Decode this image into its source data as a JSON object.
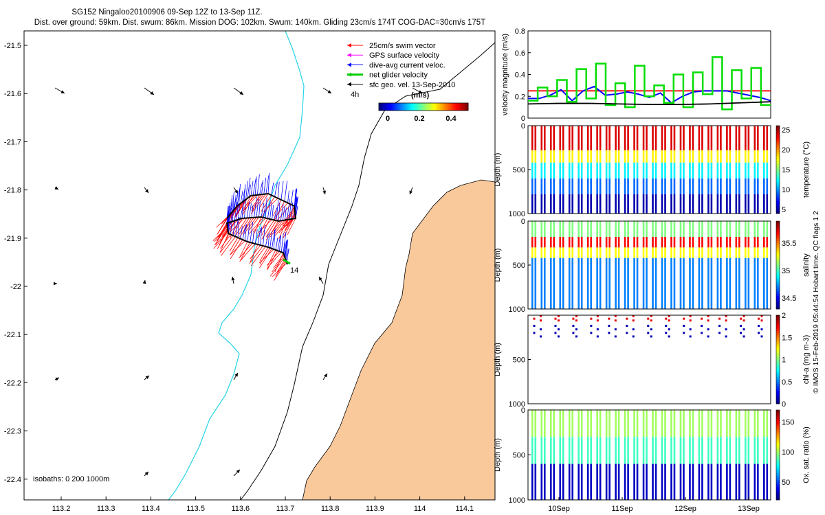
{
  "header": {
    "title": "SG152 Ningaloo20100906 09-Sep 12Z to 13-Sep 11Z.",
    "subtitle": "Dist. over ground: 59km. Dist. swum: 86km. Mission DOG: 102km. Swum: 140km. Gliding 23cm/s 174T COG-DAC=30cm/s 175T"
  },
  "copyright": "© IMOS 15-Feb-2019 05:44:54 Hobart time. QC flags 1  2",
  "map": {
    "lon_ticks": [
      "113.2",
      "113.3",
      "113.4",
      "113.5",
      "113.6",
      "113.7",
      "113.8",
      "113.9",
      "114",
      "114.1"
    ],
    "lat_ticks": [
      "-21.5",
      "-21.6",
      "-21.7",
      "-21.8",
      "-21.9",
      "-22",
      "-22.1",
      "-22.2",
      "-22.3",
      "-22.4"
    ],
    "legend": [
      {
        "label": "25cm/s swim vector",
        "color": "#ff0000"
      },
      {
        "label": "GPS surface velocity",
        "color": "#ff00ff"
      },
      {
        "label": "dive-avg current veloc.",
        "color": "#0000ff"
      },
      {
        "label": "net glider velocity",
        "color": "#00cc00"
      },
      {
        "label": "sfc geo. vel. 13-Sep-2010",
        "color": "#000000"
      }
    ],
    "time_label": "4h",
    "colorbar_title": "(m/s)",
    "colorbar_ticks": [
      "0",
      "0.2",
      "0.4"
    ],
    "isobaths_label": "isobaths: 0   200  1000m",
    "end_label": "14",
    "land_color": "#f9c89b",
    "isobath_200_color": "#22d3e6"
  },
  "chart_data": [
    {
      "type": "line",
      "title": "velocity magnitude",
      "ylabel": "velocity magnitude (m/s)",
      "ylim": [
        0,
        0.8
      ],
      "yticks": [
        "0",
        "0.2",
        "0.4",
        "0.6",
        "0.8"
      ],
      "series": [
        {
          "name": "25cm/s swim vector",
          "color": "#ff0000",
          "values": [
            0.25,
            0.25
          ]
        },
        {
          "name": "dive-avg current veloc.",
          "color": "#0000ff",
          "values": [
            0.18,
            0.18,
            0.21,
            0.26,
            0.16,
            0.25,
            0.29,
            0.21,
            0.22,
            0.24,
            0.22,
            0.19,
            0.23,
            0.14,
            0.2,
            0.24,
            0.25,
            0.25,
            0.25,
            0.23,
            0.21,
            0.19,
            0.16
          ]
        },
        {
          "name": "net glider velocity",
          "color": "#00dd00",
          "values": [
            0.16,
            0.28,
            0.2,
            0.35,
            0.15,
            0.45,
            0.18,
            0.5,
            0.12,
            0.32,
            0.1,
            0.48,
            0.2,
            0.3,
            0.14,
            0.4,
            0.1,
            0.42,
            0.22,
            0.56,
            0.08,
            0.44,
            0.18,
            0.46,
            0.12
          ]
        },
        {
          "name": "sfc geo. vel.",
          "color": "#000000",
          "values": [
            0.13,
            0.135,
            0.135,
            0.13,
            0.125,
            0.125,
            0.13,
            0.14,
            0.15
          ]
        }
      ]
    },
    {
      "type": "scatter",
      "variable": "temperature",
      "ylabel": "Depth (m)",
      "clabel": "temperature (°C)",
      "clim": [
        4,
        26
      ],
      "cticks": [
        "5",
        "10",
        "15",
        "20",
        "25"
      ],
      "ylim": [
        1000,
        0
      ],
      "yticks": [
        "0",
        "500",
        "1000"
      ],
      "layers": [
        {
          "depth_top": 0,
          "depth_bot": 280,
          "value": 24
        },
        {
          "depth_top": 280,
          "depth_bot": 420,
          "value": 18
        },
        {
          "depth_top": 420,
          "depth_bot": 600,
          "value": 12
        },
        {
          "depth_top": 600,
          "depth_bot": 780,
          "value": 9
        },
        {
          "depth_top": 780,
          "depth_bot": 1000,
          "value": 5
        }
      ]
    },
    {
      "type": "scatter",
      "variable": "salinity",
      "ylabel": "Depth (m)",
      "clabel": "salinity",
      "clim": [
        34.3,
        35.9
      ],
      "cticks": [
        "34.5",
        "35",
        "35.5"
      ],
      "ylim": [
        1000,
        0
      ],
      "yticks": [
        "0",
        "500",
        "1000"
      ],
      "layers": [
        {
          "depth_top": 0,
          "depth_bot": 180,
          "value": 35.1
        },
        {
          "depth_top": 180,
          "depth_bot": 300,
          "value": 35.7
        },
        {
          "depth_top": 300,
          "depth_bot": 420,
          "value": 35.3
        },
        {
          "depth_top": 420,
          "depth_bot": 1000,
          "value": 34.7
        }
      ]
    },
    {
      "type": "scatter",
      "variable": "chl-a",
      "ylabel": "Depth (m)",
      "clabel": "chl-a (mg m-3)",
      "clim": [
        0,
        2
      ],
      "cticks": [
        "0",
        "0.5",
        "1",
        "1.5",
        "2"
      ],
      "ylim": [
        1000,
        0
      ],
      "yticks": [
        "500",
        "1000"
      ],
      "layers": [
        {
          "depth_top": 0,
          "depth_bot": 80,
          "value": 1.8
        },
        {
          "depth_top": 80,
          "depth_bot": 300,
          "value": 0.1
        }
      ]
    },
    {
      "type": "scatter",
      "variable": "oxygen saturation",
      "ylabel": "Depth (m)",
      "clabel": "Ox. sat. ratio (%)",
      "clim": [
        20,
        170
      ],
      "cticks": [
        "50",
        "100",
        "150"
      ],
      "ylim": [
        1000,
        0
      ],
      "yticks": [
        "0",
        "500",
        "1000"
      ],
      "xticks": [
        "10Sep",
        "11Sep",
        "12Sep",
        "13Sep"
      ],
      "layers": [
        {
          "depth_top": 0,
          "depth_bot": 300,
          "value": 100
        },
        {
          "depth_top": 300,
          "depth_bot": 600,
          "value": 85
        },
        {
          "depth_top": 600,
          "depth_bot": 1000,
          "value": 30
        }
      ]
    }
  ]
}
